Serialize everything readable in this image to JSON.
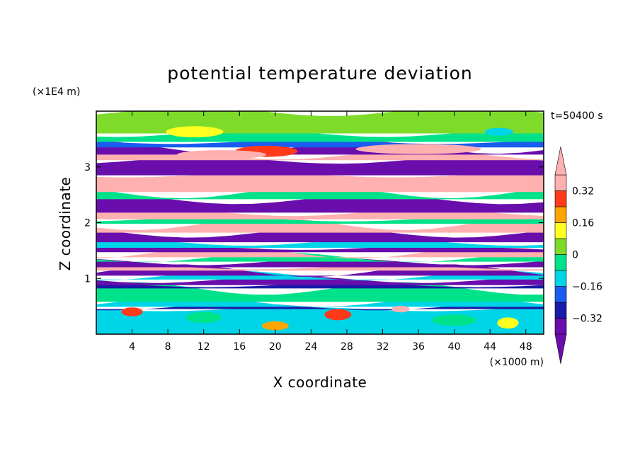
{
  "chart_data": {
    "type": "heatmap",
    "title": "potential temperature deviation",
    "xlabel": "X coordinate",
    "ylabel": "Z coordinate",
    "x_unit": "(×1000 m)",
    "y_unit": "(×1E4 m)",
    "time_label": "t=50400 s",
    "xlim": [
      0,
      50
    ],
    "ylim": [
      0,
      4
    ],
    "x_ticks": [
      4,
      8,
      12,
      16,
      20,
      24,
      28,
      32,
      36,
      40,
      44,
      48
    ],
    "y_ticks": [
      1,
      2,
      3
    ],
    "colorbar": {
      "levels": [
        -0.4,
        -0.32,
        -0.24,
        -0.16,
        -0.08,
        0,
        0.08,
        0.16,
        0.24,
        0.32,
        0.4
      ],
      "tick_labels": [
        "0.32",
        "0.16",
        "0",
        "−0.16",
        "−0.32"
      ],
      "colors": [
        "#6a0dad",
        "#1a1aa8",
        "#1a5cf0",
        "#00d5e8",
        "#00e28a",
        "#7fdb2a",
        "#ffff20",
        "#ffa500",
        "#ff3a1a",
        "#ffb0b0"
      ],
      "extend": "both",
      "lower_extend_color": "#6a0dad",
      "upper_extend_color": "#ffb0b0"
    }
  }
}
